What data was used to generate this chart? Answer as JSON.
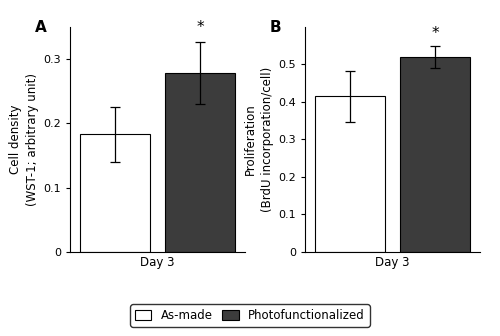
{
  "panel_A": {
    "label": "A",
    "ylabel_line1": "Cell density",
    "ylabel_line2": "(WST-1; arbitrary unit)",
    "xlabel": "Day 3",
    "bar_values": [
      0.183,
      0.278
    ],
    "bar_errors": [
      0.043,
      0.048
    ],
    "ylim": [
      0,
      0.35
    ],
    "yticks": [
      0,
      0.1,
      0.2,
      0.3
    ],
    "ytick_labels": [
      "0",
      "0.1",
      "0.2",
      "0.3"
    ],
    "bar_colors": [
      "#ffffff",
      "#3c3c3c"
    ],
    "bar_edgecolor": "#000000"
  },
  "panel_B": {
    "label": "B",
    "ylabel_line1": "Proliferation",
    "ylabel_line2": "(BrdU incorporation/cell)",
    "xlabel": "Day 3",
    "bar_values": [
      0.415,
      0.52
    ],
    "bar_errors": [
      0.068,
      0.03
    ],
    "ylim": [
      0,
      0.6
    ],
    "yticks": [
      0,
      0.1,
      0.2,
      0.3,
      0.4,
      0.5
    ],
    "ytick_labels": [
      "0",
      "0.1",
      "0.2",
      "0.3",
      "0.4",
      "0.5"
    ],
    "bar_colors": [
      "#ffffff",
      "#3c3c3c"
    ],
    "bar_edgecolor": "#000000"
  },
  "legend_labels": [
    "As-made",
    "Photofunctionalized"
  ],
  "legend_colors": [
    "#ffffff",
    "#3c3c3c"
  ],
  "bar_width": 0.28,
  "figure_bg": "#ffffff",
  "fontsize_label": 8.5,
  "fontsize_tick": 8,
  "fontsize_panel": 11,
  "fontsize_star": 11
}
